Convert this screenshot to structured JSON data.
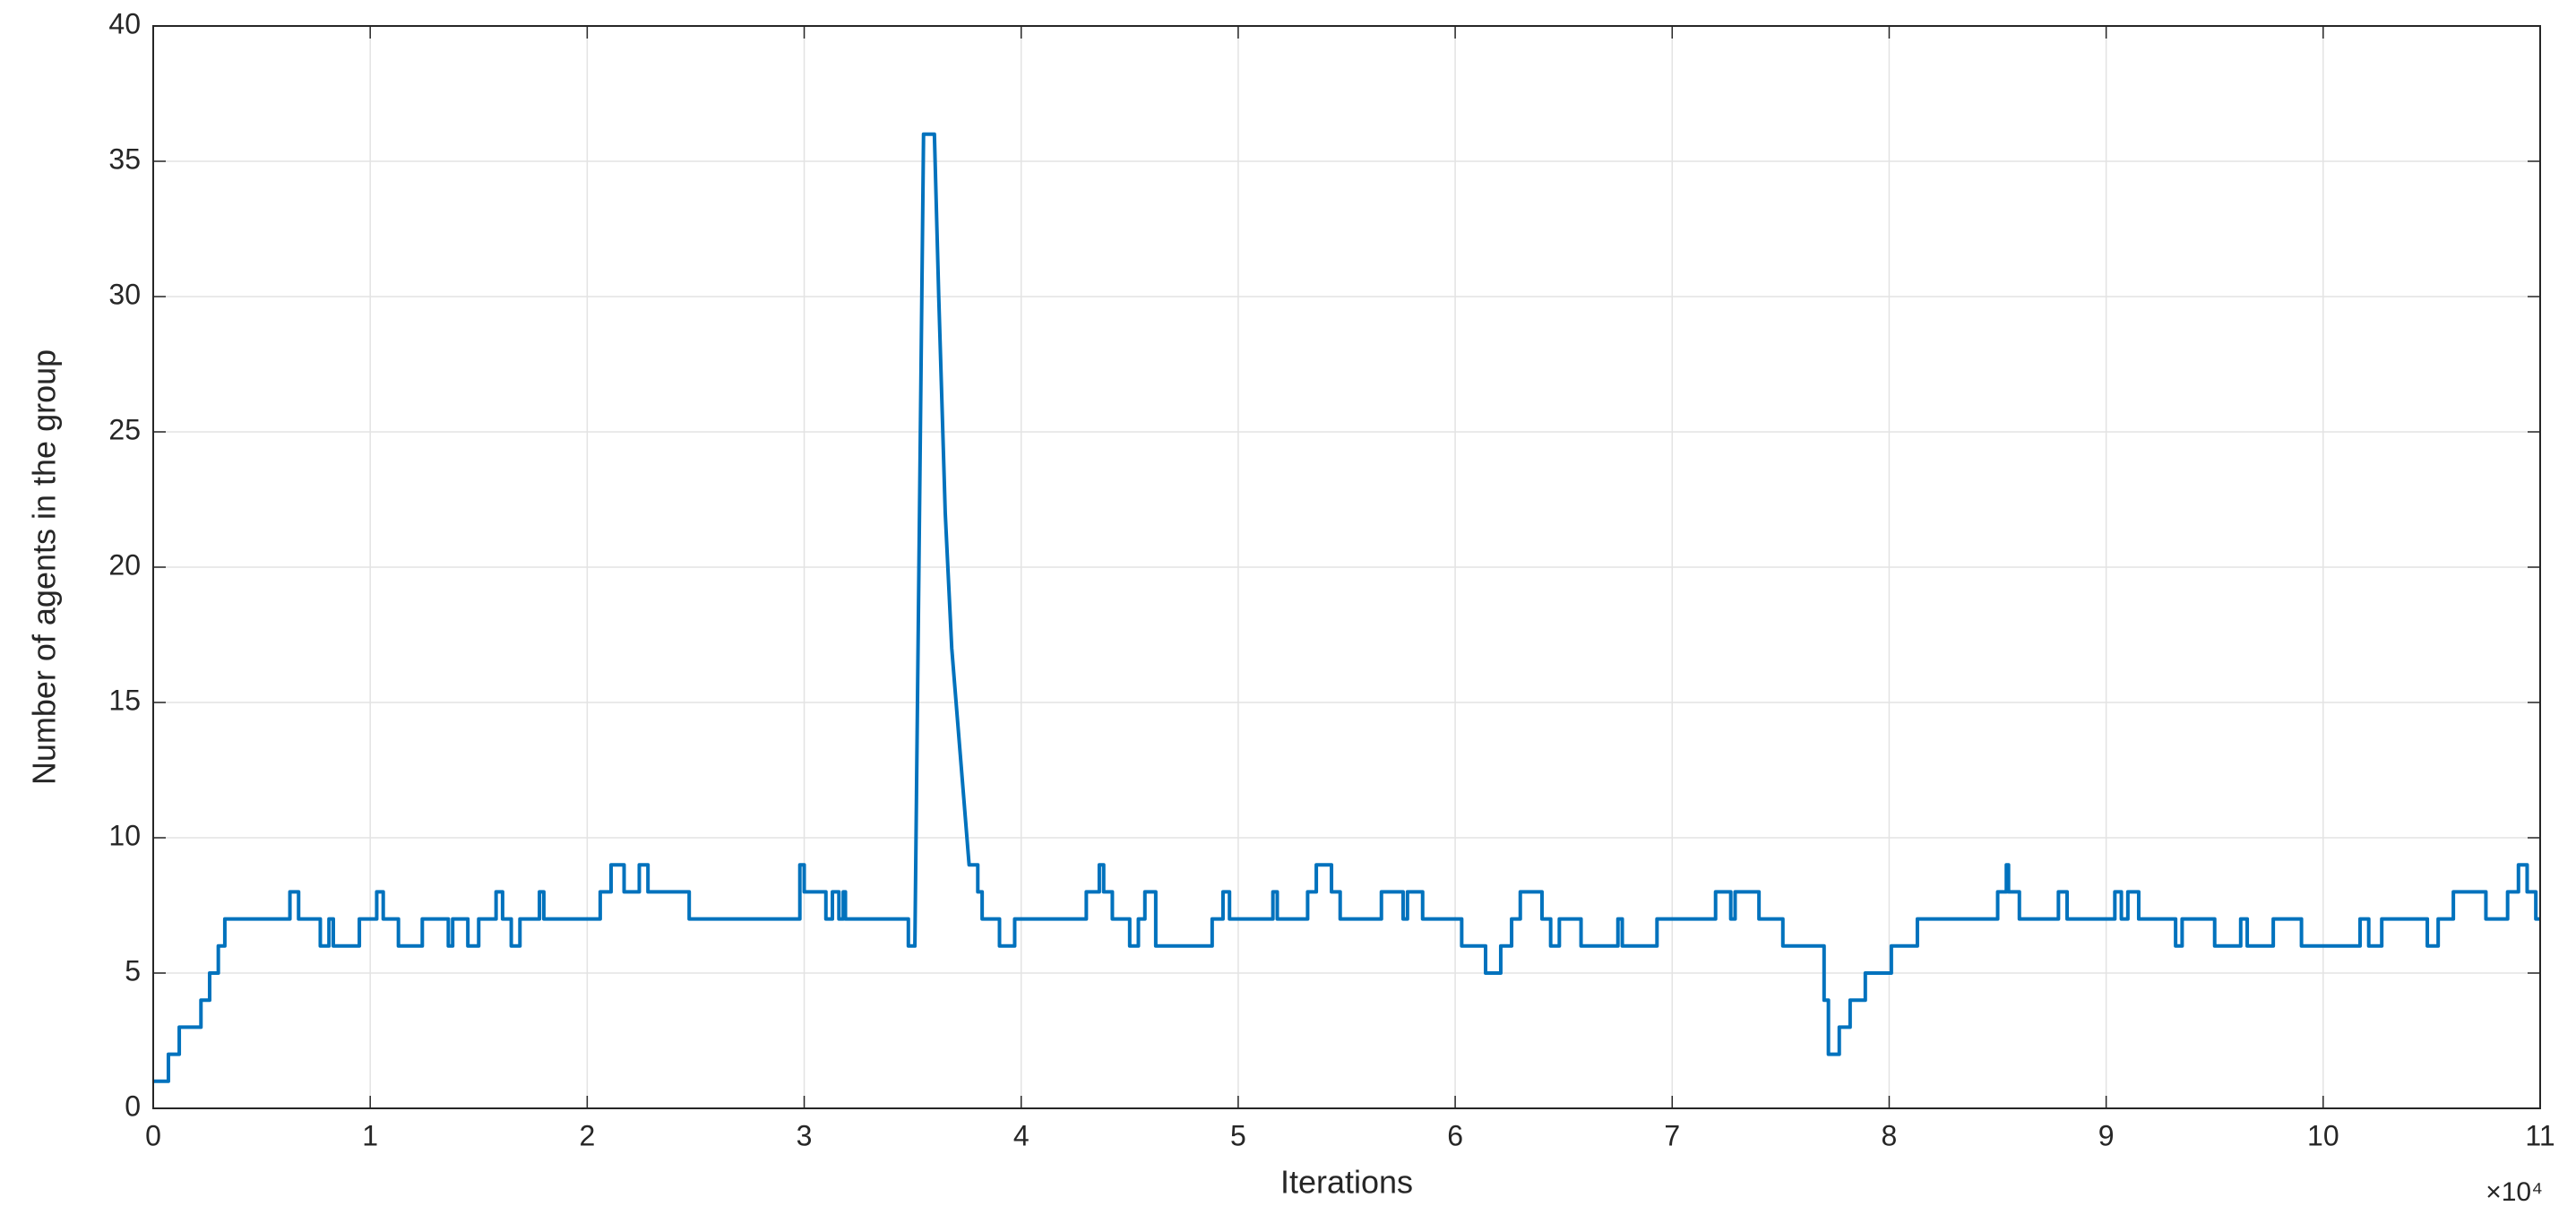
{
  "chart_data": {
    "type": "line",
    "x_label": "Iterations",
    "y_label": "Number of agents in the group",
    "x_multiplier": "×10⁴",
    "color": "#0072bd",
    "grid": true,
    "xlim": [
      0,
      11
    ],
    "ylim": [
      0,
      40
    ],
    "xticks": [
      0,
      1,
      2,
      3,
      4,
      5,
      6,
      7,
      8,
      9,
      10,
      11
    ],
    "yticks": [
      0,
      5,
      10,
      15,
      20,
      25,
      30,
      35,
      40
    ],
    "x": [
      0,
      0.07,
      0.07,
      0.12,
      0.12,
      0.22,
      0.22,
      0.26,
      0.26,
      0.3,
      0.3,
      0.33,
      0.33,
      0.63,
      0.63,
      0.67,
      0.67,
      0.77,
      0.77,
      0.81,
      0.81,
      0.83,
      0.83,
      0.95,
      0.95,
      1.03,
      1.03,
      1.06,
      1.06,
      1.13,
      1.13,
      1.24,
      1.24,
      1.36,
      1.36,
      1.38,
      1.38,
      1.45,
      1.45,
      1.5,
      1.5,
      1.58,
      1.58,
      1.61,
      1.61,
      1.65,
      1.65,
      1.69,
      1.69,
      1.78,
      1.78,
      1.8,
      1.8,
      2.06,
      2.06,
      2.11,
      2.11,
      2.17,
      2.17,
      2.24,
      2.24,
      2.28,
      2.28,
      2.47,
      2.47,
      2.98,
      2.98,
      3.0,
      3.0,
      3.1,
      3.1,
      3.13,
      3.13,
      3.16,
      3.16,
      3.18,
      3.18,
      3.19,
      3.19,
      3.48,
      3.48,
      3.51,
      3.55,
      3.6,
      3.62,
      3.65,
      3.68,
      3.71,
      3.74,
      3.76,
      3.8,
      3.8,
      3.82,
      3.82,
      3.9,
      3.9,
      3.97,
      3.97,
      4.3,
      4.3,
      4.36,
      4.36,
      4.38,
      4.38,
      4.42,
      4.42,
      4.5,
      4.5,
      4.54,
      4.54,
      4.57,
      4.57,
      4.62,
      4.62,
      4.88,
      4.88,
      4.93,
      4.93,
      4.96,
      4.96,
      5.16,
      5.16,
      5.18,
      5.18,
      5.32,
      5.32,
      5.36,
      5.36,
      5.43,
      5.43,
      5.47,
      5.47,
      5.66,
      5.66,
      5.76,
      5.76,
      5.78,
      5.78,
      5.85,
      5.85,
      6.03,
      6.03,
      6.14,
      6.14,
      6.21,
      6.21,
      6.26,
      6.26,
      6.3,
      6.3,
      6.4,
      6.4,
      6.44,
      6.44,
      6.48,
      6.48,
      6.58,
      6.58,
      6.75,
      6.75,
      6.77,
      6.77,
      6.93,
      6.93,
      7.2,
      7.2,
      7.27,
      7.27,
      7.29,
      7.29,
      7.4,
      7.4,
      7.51,
      7.51,
      7.7,
      7.7,
      7.72,
      7.72,
      7.77,
      7.77,
      7.82,
      7.82,
      7.89,
      7.89,
      8.01,
      8.01,
      8.13,
      8.13,
      8.5,
      8.5,
      8.54,
      8.54,
      8.55,
      8.55,
      8.6,
      8.6,
      8.78,
      8.78,
      8.82,
      8.82,
      9.04,
      9.04,
      9.07,
      9.07,
      9.1,
      9.1,
      9.15,
      9.15,
      9.32,
      9.32,
      9.35,
      9.35,
      9.5,
      9.5,
      9.62,
      9.62,
      9.65,
      9.65,
      9.77,
      9.77,
      9.9,
      9.9,
      10.17,
      10.17,
      10.21,
      10.21,
      10.27,
      10.27,
      10.48,
      10.48,
      10.53,
      10.53,
      10.6,
      10.6,
      10.75,
      10.75,
      10.85,
      10.85,
      10.9,
      10.9,
      10.94,
      10.94,
      10.98,
      10.98,
      11
    ],
    "values": [
      1,
      1,
      2,
      2,
      3,
      3,
      4,
      4,
      5,
      5,
      6,
      6,
      7,
      7,
      8,
      8,
      7,
      7,
      6,
      6,
      7,
      7,
      6,
      6,
      7,
      7,
      8,
      8,
      7,
      7,
      6,
      6,
      7,
      7,
      6,
      6,
      7,
      7,
      6,
      6,
      7,
      7,
      8,
      8,
      7,
      7,
      6,
      6,
      7,
      7,
      8,
      8,
      7,
      7,
      8,
      8,
      9,
      9,
      8,
      8,
      9,
      9,
      8,
      8,
      7,
      7,
      9,
      9,
      8,
      8,
      7,
      7,
      8,
      8,
      7,
      7,
      8,
      8,
      7,
      7,
      6,
      6,
      36,
      36,
      30,
      22,
      17,
      14,
      11,
      9,
      9,
      8,
      8,
      7,
      7,
      6,
      6,
      7,
      7,
      8,
      8,
      9,
      9,
      8,
      8,
      7,
      7,
      6,
      6,
      7,
      7,
      8,
      8,
      6,
      6,
      7,
      7,
      8,
      8,
      7,
      7,
      8,
      8,
      7,
      7,
      8,
      8,
      9,
      9,
      8,
      8,
      7,
      7,
      8,
      8,
      7,
      7,
      8,
      8,
      7,
      7,
      6,
      6,
      5,
      5,
      6,
      6,
      7,
      7,
      8,
      8,
      7,
      7,
      6,
      6,
      7,
      7,
      6,
      6,
      7,
      7,
      6,
      6,
      7,
      7,
      8,
      8,
      7,
      7,
      8,
      8,
      7,
      7,
      6,
      6,
      4,
      4,
      2,
      2,
      3,
      3,
      4,
      4,
      5,
      5,
      6,
      6,
      7,
      7,
      8,
      8,
      9,
      9,
      8,
      8,
      7,
      7,
      8,
      8,
      7,
      7,
      8,
      8,
      7,
      7,
      8,
      8,
      7,
      7,
      6,
      6,
      7,
      7,
      6,
      6,
      7,
      7,
      6,
      6,
      7,
      7,
      6,
      6,
      7,
      7,
      6,
      6,
      7,
      7,
      6,
      6,
      7,
      7,
      8,
      8,
      7,
      7,
      8,
      8,
      9,
      9,
      8,
      8,
      7,
      7
    ]
  }
}
